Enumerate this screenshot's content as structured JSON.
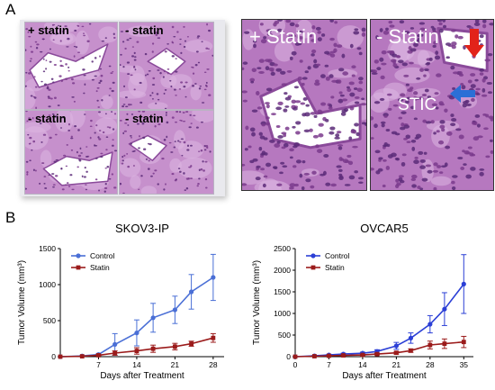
{
  "panel_a": {
    "letter": "A",
    "micrographs": [
      {
        "label": "+ statin"
      },
      {
        "label": "- statin"
      },
      {
        "label": "- statin"
      },
      {
        "label": "- statin"
      }
    ],
    "zoom_left": {
      "label": "+ Statin"
    },
    "zoom_right": {
      "label": "- Statin",
      "annotation": "STIC",
      "arrow_red": "red-arrow-icon",
      "arrow_blue": "blue-arrow-icon"
    },
    "colors": {
      "tissue": "#c690cc",
      "tissue_dark": "#7a3a8c",
      "nuclei": "#5a2a78",
      "red_arrow": "#e2231a",
      "blue_arrow": "#2b6fd6"
    }
  },
  "panel_b": {
    "letter": "B"
  },
  "chart_data": [
    {
      "type": "line",
      "title": "SKOV3-IP",
      "xlabel": "Days after Treatment",
      "ylabel": "Tumor Volume (mm³)",
      "xlim": [
        0,
        30
      ],
      "ylim": [
        0,
        1500
      ],
      "xticks": [
        7,
        14,
        21,
        28
      ],
      "yticks": [
        0,
        500,
        1000,
        1500
      ],
      "legend": "top-left",
      "series": [
        {
          "name": "Control",
          "color": "#4a6fd6",
          "marker": "circle",
          "x": [
            0,
            4,
            7,
            10,
            14,
            17,
            21,
            24,
            28
          ],
          "y": [
            0,
            10,
            30,
            170,
            330,
            540,
            650,
            900,
            1100
          ],
          "err": [
            0,
            5,
            15,
            150,
            180,
            200,
            190,
            240,
            320
          ]
        },
        {
          "name": "Statin",
          "color": "#9b1b1b",
          "marker": "square",
          "x": [
            0,
            4,
            7,
            10,
            14,
            17,
            21,
            24,
            28
          ],
          "y": [
            0,
            5,
            20,
            50,
            80,
            110,
            140,
            180,
            260
          ],
          "err": [
            0,
            3,
            10,
            30,
            45,
            50,
            45,
            35,
            60
          ]
        }
      ]
    },
    {
      "type": "line",
      "title": "OVCAR5",
      "xlabel": "Days after Treatment",
      "ylabel": "Tumor Volume (mm³)",
      "xlim": [
        0,
        37
      ],
      "ylim": [
        0,
        2500
      ],
      "xticks": [
        0,
        7,
        14,
        21,
        28,
        35
      ],
      "yticks": [
        0,
        500,
        1000,
        1500,
        2000,
        2500
      ],
      "legend": "top-left",
      "series": [
        {
          "name": "Control",
          "color": "#2b3fd6",
          "marker": "circle",
          "x": [
            0,
            4,
            7,
            10,
            14,
            17,
            21,
            24,
            28,
            31,
            35
          ],
          "y": [
            0,
            20,
            40,
            60,
            80,
            120,
            250,
            430,
            750,
            1100,
            1680
          ],
          "err": [
            0,
            10,
            15,
            20,
            25,
            40,
            80,
            120,
            200,
            380,
            680
          ]
        },
        {
          "name": "Statin",
          "color": "#9b1b1b",
          "marker": "square",
          "x": [
            0,
            4,
            7,
            10,
            14,
            17,
            21,
            24,
            28,
            31,
            35
          ],
          "y": [
            0,
            10,
            20,
            30,
            40,
            60,
            90,
            140,
            270,
            300,
            340
          ],
          "err": [
            0,
            5,
            10,
            10,
            15,
            20,
            30,
            40,
            90,
            110,
            130
          ]
        }
      ]
    }
  ]
}
